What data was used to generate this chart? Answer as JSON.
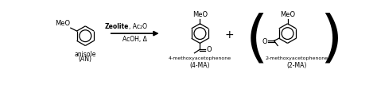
{
  "bg_color": "#ffffff",
  "figure_width": 4.74,
  "figure_height": 1.07,
  "dpi": 100,
  "arrow_label_top_bold": "Zeolite",
  "arrow_label_top_rest": ", Ac₂O",
  "arrow_label_bottom": "AcOH, Δ",
  "label_anisole": "anisole",
  "label_AN": "(AN)",
  "label_4MA_name": "4-methoxyacetophenone",
  "label_4MA": "(4-MA)",
  "label_2MA_name": "2-methoxyacetophenone",
  "label_2MA": "(2-MA)",
  "text_color": "#000000",
  "line_color": "#000000",
  "font_size_small": 5.5,
  "font_size_chem": 6.0,
  "font_size_arrow": 5.5
}
